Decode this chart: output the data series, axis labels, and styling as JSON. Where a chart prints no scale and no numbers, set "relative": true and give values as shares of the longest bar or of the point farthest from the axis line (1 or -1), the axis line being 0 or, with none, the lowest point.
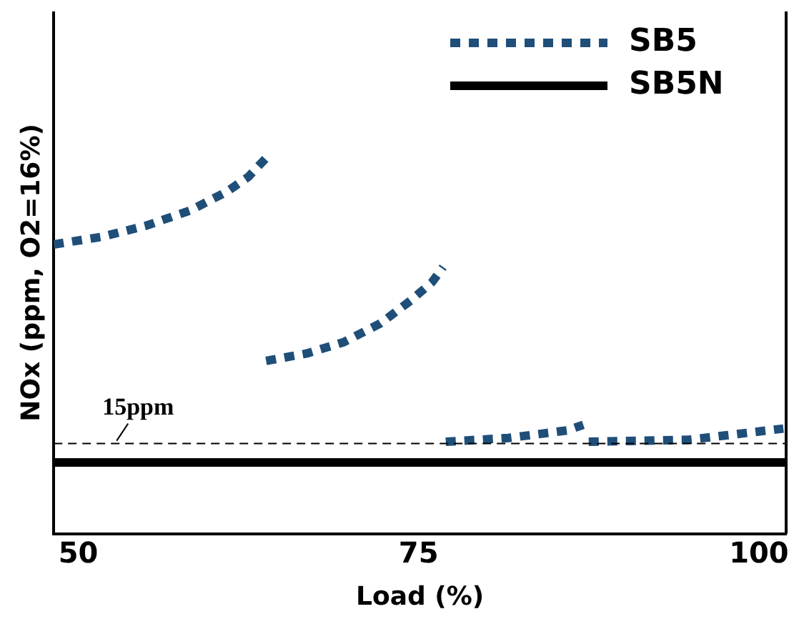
{
  "chart_data": {
    "type": "line",
    "xlabel": "Load (%)",
    "ylabel": "NOx (ppm, O2=16%)",
    "relative": true,
    "xlim": [
      48.2,
      102
    ],
    "xticks": [
      50,
      75,
      100
    ],
    "grid": false,
    "legend": "top right",
    "marker": "none",
    "series": [
      {
        "name": "SB5",
        "color": "#1f4e79",
        "line_style": "dotted",
        "x": [
          48.2,
          51.7,
          55.0,
          58.2,
          60.9,
          62.5,
          63.8
        ],
        "values": [
          0.77,
          0.79,
          0.82,
          0.86,
          0.91,
          0.95,
          1
        ]
      },
      {
        "color": "#1f4e79",
        "line_style": "dotted",
        "x": [
          63.8,
          66.8,
          69.5,
          72.2,
          74.4,
          76.0,
          76.8
        ],
        "values": [
          0.46,
          0.48,
          0.51,
          0.56,
          0.62,
          0.67,
          0.71
        ]
      },
      {
        "color": "#1f4e79",
        "line_style": "dotted",
        "x": [
          77.0,
          81.6,
          85.9,
          87.1
        ],
        "values": [
          0.245,
          0.255,
          0.275,
          0.29
        ]
      },
      {
        "color": "#1f4e79",
        "line_style": "dotted",
        "x": [
          87.5,
          94.8,
          101.8
        ],
        "values": [
          0.245,
          0.25,
          0.28
        ]
      },
      {
        "name": "SB5N",
        "color": "#000000",
        "line_style": "solid",
        "x": [
          48.2,
          101.9
        ],
        "values": [
          0.19,
          0.19
        ]
      }
    ],
    "ref_lines": [
      {
        "axis": "y",
        "value": 0.24,
        "label": "15ppm",
        "color": "#000000",
        "line_style": "dashed"
      }
    ]
  }
}
